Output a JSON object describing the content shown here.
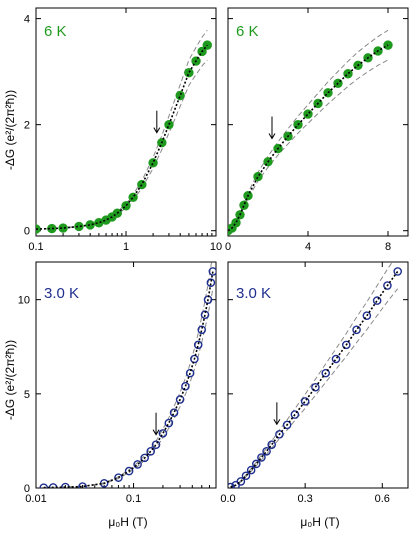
{
  "colors": {
    "green": "#1f9a1f",
    "blue": "#1f2f8f",
    "fit": "#000000",
    "bound": "#888888"
  },
  "chart_data": [
    {
      "type": "scatter",
      "panel_label": "6 K",
      "xscale": "log",
      "xlim": [
        0.1,
        10
      ],
      "ylim": [
        -0.1,
        4.2
      ],
      "xticks": [
        "0.1",
        "1",
        "10"
      ],
      "xtick_values": [
        0.1,
        1,
        10
      ],
      "yticks": [
        "0",
        "2",
        "4"
      ],
      "ytick_values": [
        0,
        2,
        4
      ],
      "ylabel": "-ΔG (e²/(2π²ħ))",
      "xlabel": "",
      "arrow_x": 2.2,
      "grid": false,
      "series": [
        {
          "x": [
            0.1,
            0.15,
            0.2,
            0.3,
            0.4,
            0.5,
            0.6,
            0.7,
            0.8,
            1.0,
            1.2,
            1.5,
            2.0,
            2.5,
            3.0,
            4.0,
            5.0,
            6.0,
            7.0,
            8.0
          ],
          "y": [
            0.03,
            0.04,
            0.05,
            0.08,
            0.11,
            0.15,
            0.2,
            0.26,
            0.33,
            0.47,
            0.63,
            0.87,
            1.28,
            1.66,
            2.0,
            2.55,
            2.98,
            3.2,
            3.38,
            3.5
          ]
        }
      ]
    },
    {
      "type": "scatter",
      "panel_label": "6 K",
      "xscale": "linear",
      "xlim": [
        0,
        9
      ],
      "ylim": [
        -0.1,
        4.2
      ],
      "xticks": [
        "0",
        "4",
        "8"
      ],
      "xtick_values": [
        0,
        4,
        8
      ],
      "yticks": [],
      "ytick_values": [
        0,
        2,
        4
      ],
      "ylabel": "",
      "xlabel": "",
      "arrow_x": 2.2,
      "grid": false,
      "series": [
        {
          "x": [
            0.0,
            0.2,
            0.4,
            0.6,
            0.8,
            1.0,
            1.5,
            2.0,
            2.5,
            3.0,
            3.5,
            4.0,
            4.5,
            5.0,
            5.5,
            6.0,
            6.5,
            7.0,
            7.5,
            8.0
          ],
          "y": [
            0.0,
            0.05,
            0.15,
            0.3,
            0.48,
            0.66,
            1.02,
            1.3,
            1.55,
            1.78,
            2.0,
            2.2,
            2.4,
            2.6,
            2.78,
            2.96,
            3.12,
            3.26,
            3.39,
            3.5
          ]
        }
      ]
    },
    {
      "type": "scatter",
      "panel_label": "3.0 K",
      "xscale": "log",
      "xlim": [
        0.01,
        0.7
      ],
      "ylim": [
        0,
        12
      ],
      "xticks": [
        "0.01",
        "0.1"
      ],
      "xtick_values": [
        0.01,
        0.1
      ],
      "yticks": [
        "0",
        "5",
        "10"
      ],
      "ytick_values": [
        0,
        5,
        10
      ],
      "ylabel": "-ΔG (e²/(2π²ħ))",
      "xlabel": "μ₀H (T)",
      "arrow_x": 0.17,
      "grid": false,
      "series": [
        {
          "x": [
            0.012,
            0.015,
            0.02,
            0.03,
            0.05,
            0.07,
            0.09,
            0.11,
            0.13,
            0.15,
            0.17,
            0.2,
            0.23,
            0.26,
            0.3,
            0.34,
            0.38,
            0.42,
            0.46,
            0.5,
            0.54,
            0.58,
            0.62,
            0.65
          ],
          "y": [
            0.02,
            0.03,
            0.05,
            0.08,
            0.25,
            0.55,
            0.9,
            1.25,
            1.6,
            1.95,
            2.3,
            2.9,
            3.45,
            4.0,
            4.7,
            5.4,
            6.1,
            6.85,
            7.6,
            8.4,
            9.2,
            10.0,
            10.9,
            11.5
          ]
        }
      ]
    },
    {
      "type": "scatter",
      "panel_label": "3.0 K",
      "xscale": "linear",
      "xlim": [
        0,
        0.7
      ],
      "ylim": [
        0,
        12
      ],
      "xticks": [
        "0.0",
        "0.3",
        "0.6"
      ],
      "xtick_values": [
        0,
        0.3,
        0.6
      ],
      "yticks": [],
      "ytick_values": [
        0,
        5,
        10
      ],
      "ylabel": "",
      "xlabel": "μ₀H (T)",
      "arrow_x": 0.19,
      "grid": false,
      "series": [
        {
          "x": [
            0.01,
            0.03,
            0.05,
            0.07,
            0.09,
            0.11,
            0.13,
            0.15,
            0.17,
            0.2,
            0.23,
            0.26,
            0.3,
            0.34,
            0.38,
            0.42,
            0.46,
            0.5,
            0.54,
            0.58,
            0.62,
            0.66
          ],
          "y": [
            0.05,
            0.15,
            0.35,
            0.65,
            0.95,
            1.28,
            1.62,
            1.95,
            2.3,
            2.85,
            3.35,
            3.9,
            4.6,
            5.35,
            6.1,
            6.85,
            7.6,
            8.4,
            9.15,
            9.95,
            10.75,
            11.5
          ]
        }
      ]
    }
  ]
}
